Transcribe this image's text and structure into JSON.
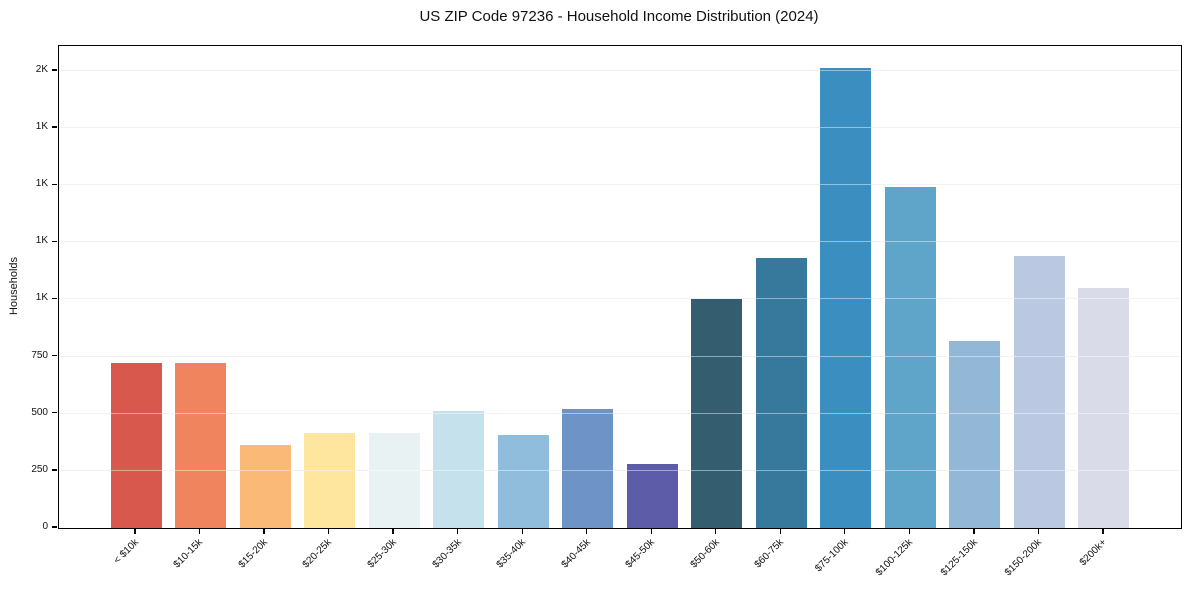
{
  "chart_data": {
    "type": "bar",
    "title": "US ZIP Code 97236 - Household Income Distribution (2024)",
    "xlabel": "",
    "ylabel": "Households",
    "categories": [
      "< $10k",
      "$10-15k",
      "$15-20k",
      "$20-25k",
      "$25-30k",
      "$30-35k",
      "$35-40k",
      "$40-45k",
      "$45-50k",
      "$50-60k",
      "$60-75k",
      "$75-100k",
      "$100-125k",
      "$125-150k",
      "$150-200k",
      "$200k+"
    ],
    "values": [
      722,
      723,
      365,
      417,
      414,
      513,
      405,
      519,
      282,
      1000,
      1180,
      2012,
      1492,
      818,
      1190,
      1052
    ],
    "bar_colors": [
      "#d8584e",
      "#f0845e",
      "#fbb977",
      "#fee69e",
      "#e9f2f3",
      "#c5e1ec",
      "#90bddc",
      "#6e93c6",
      "#5d5ca8",
      "#355d70",
      "#36799c",
      "#3a8ec0",
      "#5ea5c9",
      "#93b7d7",
      "#bac9e1",
      "#d9dbe9"
    ],
    "y_ticks": [
      {
        "value": 0,
        "label": "0"
      },
      {
        "value": 250,
        "label": "250"
      },
      {
        "value": 500,
        "label": "500"
      },
      {
        "value": 750,
        "label": "750"
      },
      {
        "value": 1000,
        "label": "1K"
      },
      {
        "value": 1250,
        "label": "1K"
      },
      {
        "value": 1500,
        "label": "1K"
      },
      {
        "value": 1750,
        "label": "1K"
      },
      {
        "value": 2000,
        "label": "2K"
      }
    ],
    "ylim": [
      0,
      2109
    ],
    "grid": "horizontal",
    "legend": "none",
    "axis_color": "#000000",
    "gridline_color": "#e8e8e8",
    "background_color": "#ffffff"
  }
}
